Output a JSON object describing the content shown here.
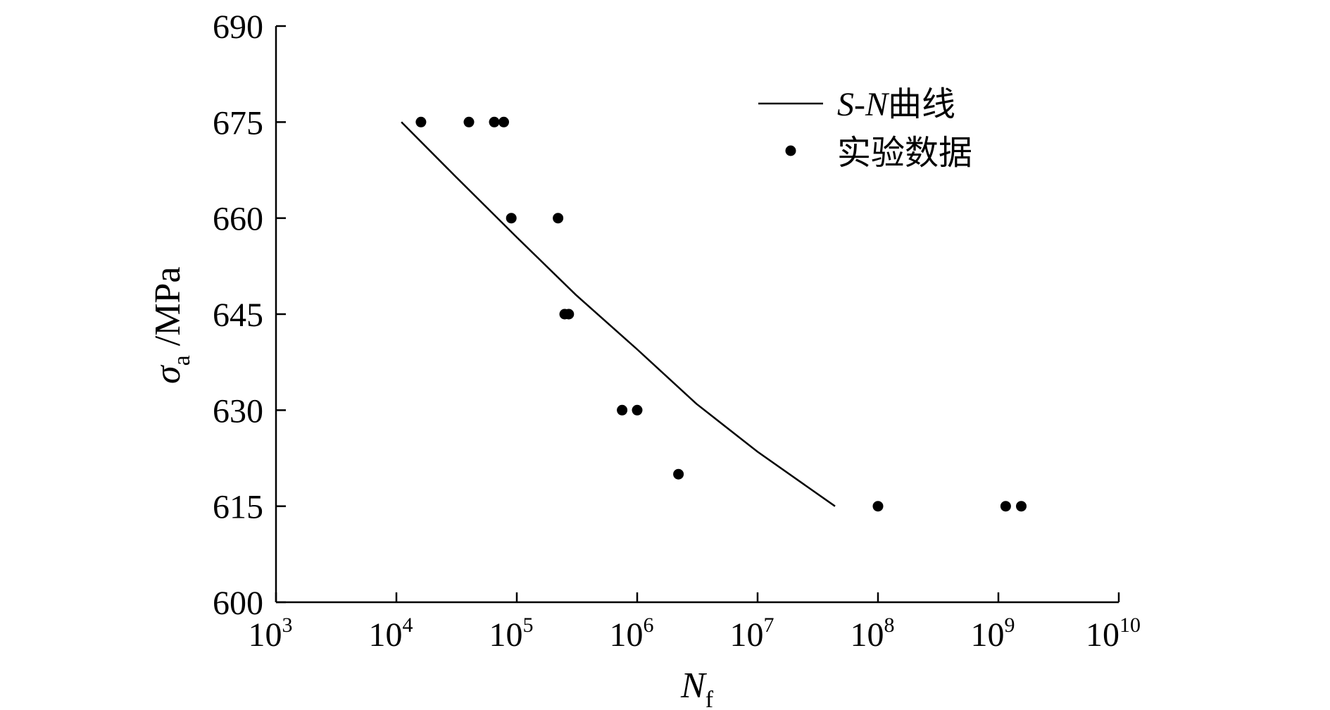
{
  "chart_data": {
    "type": "scatter",
    "xlabel": {
      "main": "N",
      "sub": "f"
    },
    "ylabel": {
      "main": "σ",
      "sub": "a",
      "unit": " /MPa"
    },
    "x_scale": "log",
    "xlim": [
      1000,
      10000000000
    ],
    "ylim": [
      600,
      690
    ],
    "x_ticks": [
      {
        "base": "10",
        "exp": "3",
        "value": 1000
      },
      {
        "base": "10",
        "exp": "4",
        "value": 10000
      },
      {
        "base": "10",
        "exp": "5",
        "value": 100000
      },
      {
        "base": "10",
        "exp": "6",
        "value": 1000000
      },
      {
        "base": "10",
        "exp": "7",
        "value": 10000000
      },
      {
        "base": "10",
        "exp": "8",
        "value": 100000000
      },
      {
        "base": "10",
        "exp": "9",
        "value": 1000000000
      },
      {
        "base": "10",
        "exp": "10",
        "value": 10000000000
      }
    ],
    "y_ticks": [
      "690",
      "675",
      "660",
      "645",
      "630",
      "615",
      "600"
    ],
    "legend": {
      "position": "top-right",
      "line_label": {
        "italic": "S-N",
        "text": "曲线"
      },
      "point_label": "实验数据"
    },
    "series": [
      {
        "kind": "line",
        "points": [
          {
            "x": 11000,
            "y": 675
          },
          {
            "x": 31000,
            "y": 666.5
          },
          {
            "x": 100000,
            "y": 657
          },
          {
            "x": 310000,
            "y": 648
          },
          {
            "x": 1000000,
            "y": 639.5
          },
          {
            "x": 3100000,
            "y": 631
          },
          {
            "x": 10000000,
            "y": 623.5
          },
          {
            "x": 44000000,
            "y": 615
          }
        ]
      },
      {
        "kind": "scatter",
        "points": [
          {
            "x": 16000,
            "y": 675
          },
          {
            "x": 40000,
            "y": 675
          },
          {
            "x": 65000,
            "y": 675
          },
          {
            "x": 78000,
            "y": 675
          },
          {
            "x": 90000,
            "y": 660
          },
          {
            "x": 220000,
            "y": 660
          },
          {
            "x": 250000,
            "y": 645
          },
          {
            "x": 270000,
            "y": 645
          },
          {
            "x": 750000,
            "y": 630
          },
          {
            "x": 1000000,
            "y": 630
          },
          {
            "x": 2200000,
            "y": 620
          },
          {
            "x": 100000000,
            "y": 615
          },
          {
            "x": 1150000000,
            "y": 615
          },
          {
            "x": 1550000000,
            "y": 615
          }
        ]
      }
    ]
  }
}
